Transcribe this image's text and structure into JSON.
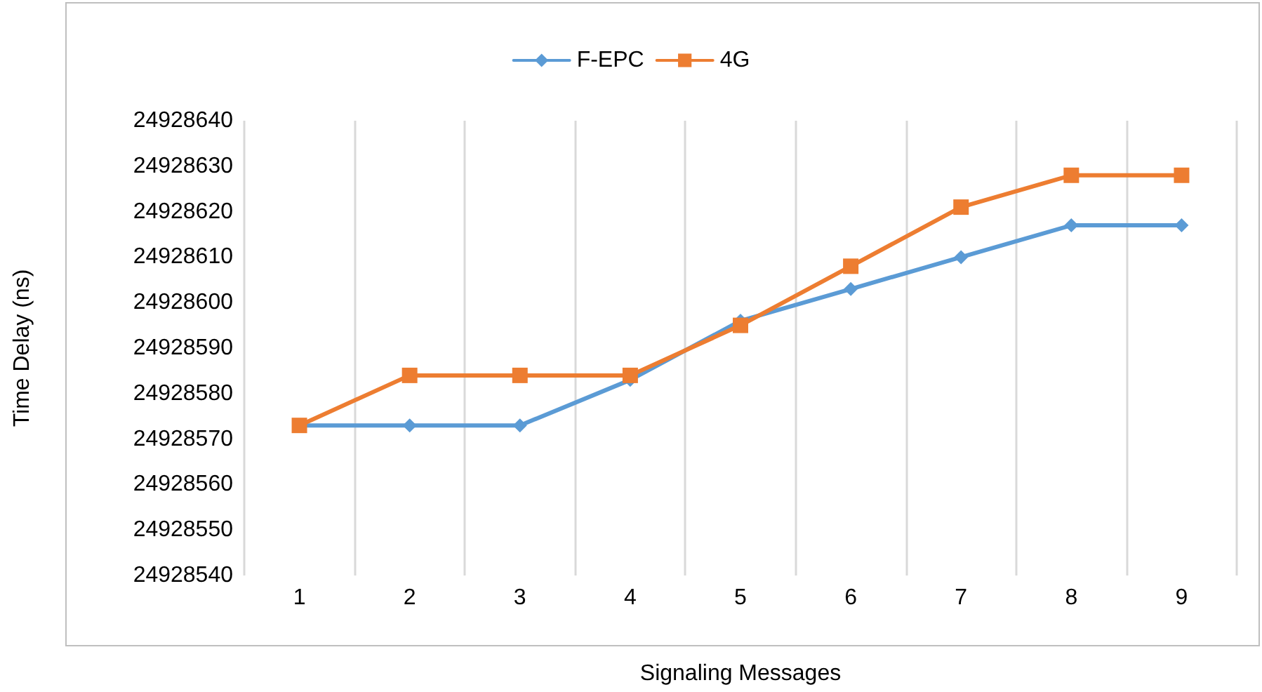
{
  "chart_data": {
    "type": "line",
    "xlabel": "Signaling Messages",
    "ylabel": "Time Delay (ns)",
    "categories": [
      "1",
      "2",
      "3",
      "4",
      "5",
      "6",
      "7",
      "8",
      "9"
    ],
    "series": [
      {
        "name": "F-EPC",
        "color": "#5b9bd5",
        "marker": "diamond",
        "values": [
          24928573,
          24928573,
          24928573,
          24928583,
          24928596,
          24928603,
          24928610,
          24928617,
          24928617
        ]
      },
      {
        "name": "4G",
        "color": "#ed7d31",
        "marker": "square",
        "values": [
          24928573,
          24928584,
          24928584,
          24928584,
          24928595,
          24928608,
          24928621,
          24928628,
          24928628
        ]
      }
    ],
    "ylim": [
      24928540,
      24928640
    ],
    "yticks": [
      24928540,
      24928550,
      24928560,
      24928570,
      24928580,
      24928590,
      24928600,
      24928610,
      24928620,
      24928630,
      24928640
    ],
    "grid": "x",
    "legend": "top"
  }
}
